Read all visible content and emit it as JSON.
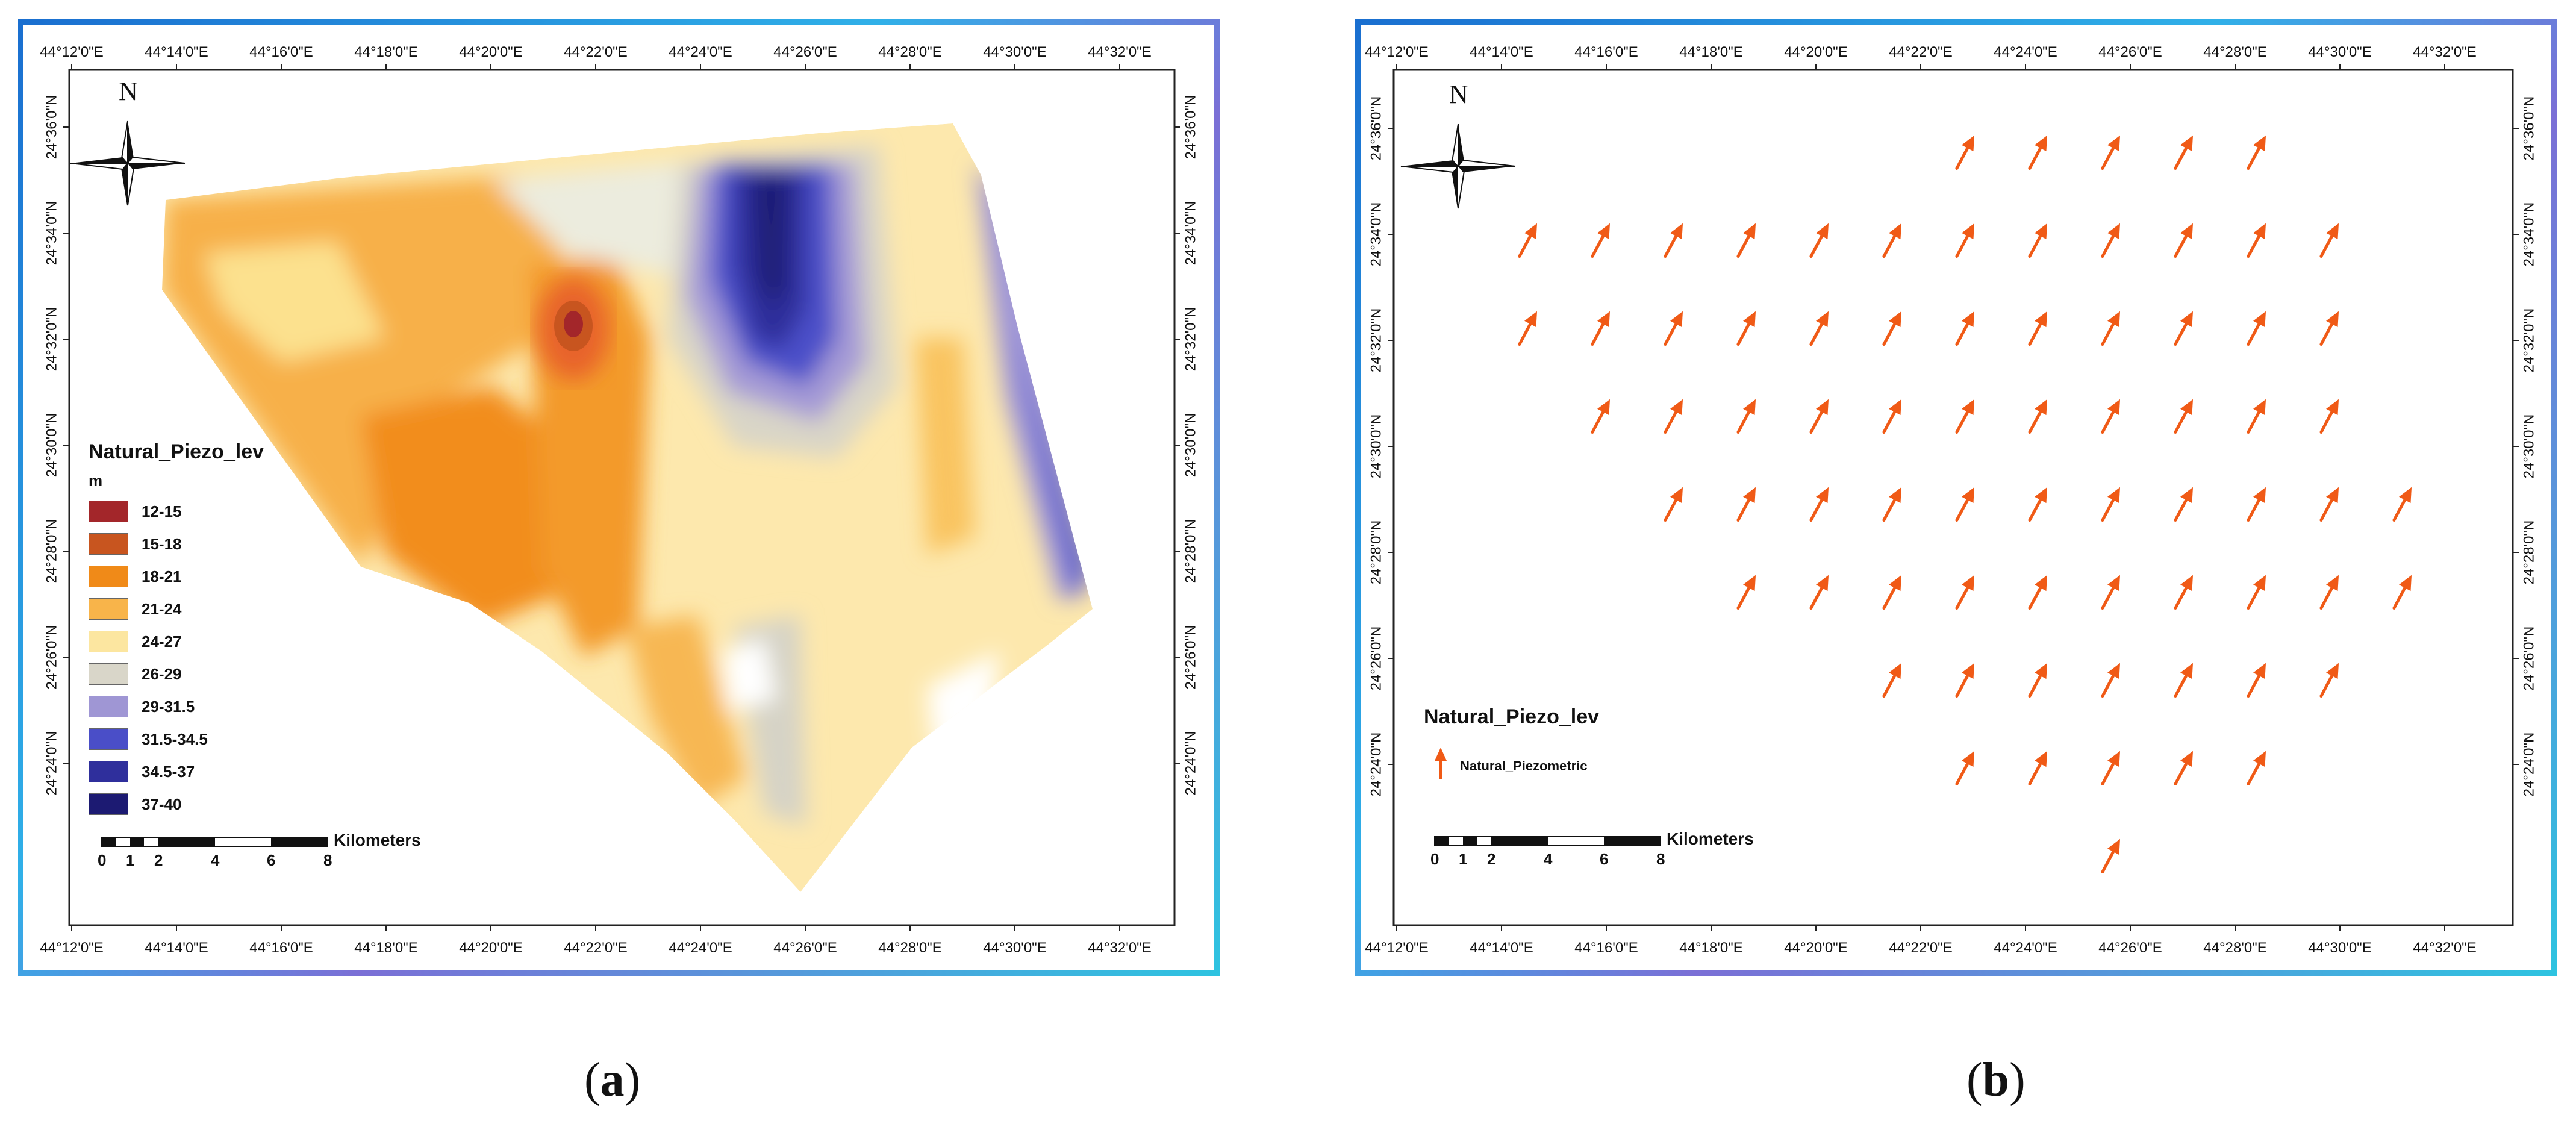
{
  "panel_a": {
    "caption_letter": "a",
    "lon_ticks": [
      "44°12'0\"E",
      "44°14'0\"E",
      "44°16'0\"E",
      "44°18'0\"E",
      "44°20'0\"E",
      "44°22'0\"E",
      "44°24'0\"E",
      "44°26'0\"E",
      "44°28'0\"E",
      "44°30'0\"E",
      "44°32'0\"E"
    ],
    "lat_ticks": [
      "24°36'0\"N",
      "24°34'0\"N",
      "24°32'0\"N",
      "24°30'0\"N",
      "24°28'0\"N",
      "24°26'0\"N",
      "24°24'0\"N"
    ],
    "north_label": "N",
    "legend": {
      "title": "Natural_Piezo_lev",
      "unit": "m",
      "items": [
        {
          "label": "12-15",
          "color": "#a3262a"
        },
        {
          "label": "15-18",
          "color": "#c8551f"
        },
        {
          "label": "18-21",
          "color": "#f08a18"
        },
        {
          "label": "21-24",
          "color": "#f8b44a"
        },
        {
          "label": "24-27",
          "color": "#fce6a0"
        },
        {
          "label": "26-29",
          "color": "#d9d6c9"
        },
        {
          "label": "29-31.5",
          "color": "#9f96d4"
        },
        {
          "label": "31.5-34.5",
          "color": "#4a4ec8"
        },
        {
          "label": "34.5-37",
          "color": "#2f2f9c"
        },
        {
          "label": "37-40",
          "color": "#1c1a72"
        }
      ]
    },
    "scale": {
      "unit": "Kilometers",
      "ticks": [
        "0",
        "1",
        "2",
        "4",
        "6",
        "8"
      ]
    }
  },
  "panel_b": {
    "caption_letter": "b",
    "lon_ticks": [
      "44°12'0\"E",
      "44°14'0\"E",
      "44°16'0\"E",
      "44°18'0\"E",
      "44°20'0\"E",
      "44°22'0\"E",
      "44°24'0\"E",
      "44°26'0\"E",
      "44°28'0\"E",
      "44°30'0\"E",
      "44°32'0\"E"
    ],
    "lat_ticks": [
      "24°36'0\"N",
      "24°34'0\"N",
      "24°32'0\"N",
      "24°30'0\"N",
      "24°28'0\"N",
      "24°26'0\"N",
      "24°24'0\"N"
    ],
    "north_label": "N",
    "legend": {
      "title": "Natural_Piezo_lev",
      "item_label": "Natural_Piezometric",
      "arrow_color": "#f05a16"
    },
    "scale": {
      "unit": "Kilometers",
      "ticks": [
        "0",
        "1",
        "2",
        "4",
        "6",
        "8"
      ]
    },
    "arrow_rows": [
      [
        0,
        0,
        0,
        0,
        0,
        0,
        1,
        1,
        1,
        1,
        1,
        0,
        0
      ],
      [
        1,
        1,
        1,
        1,
        1,
        1,
        1,
        1,
        1,
        1,
        1,
        1,
        0
      ],
      [
        1,
        1,
        1,
        1,
        1,
        1,
        1,
        1,
        1,
        1,
        1,
        1,
        0
      ],
      [
        0,
        1,
        1,
        1,
        1,
        1,
        1,
        1,
        1,
        1,
        1,
        1,
        0
      ],
      [
        0,
        0,
        1,
        1,
        1,
        1,
        1,
        1,
        1,
        1,
        1,
        1,
        1
      ],
      [
        0,
        0,
        0,
        1,
        1,
        1,
        1,
        1,
        1,
        1,
        1,
        1,
        1
      ],
      [
        0,
        0,
        0,
        0,
        0,
        1,
        1,
        1,
        1,
        1,
        1,
        1,
        0
      ],
      [
        0,
        0,
        0,
        0,
        0,
        0,
        1,
        1,
        1,
        1,
        1,
        0,
        0
      ],
      [
        0,
        0,
        0,
        0,
        0,
        0,
        0,
        0,
        1,
        0,
        0,
        0,
        0
      ]
    ]
  }
}
